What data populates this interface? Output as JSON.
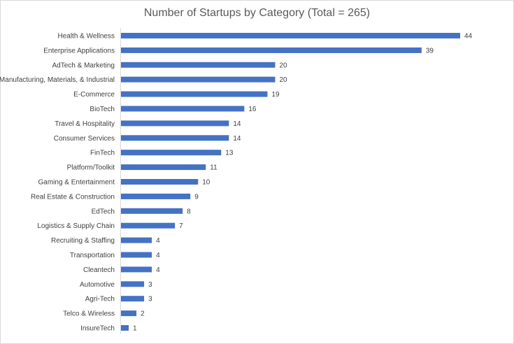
{
  "chart_data": {
    "type": "bar",
    "orientation": "horizontal",
    "title": "Number of Startups by Category (Total = 265)",
    "xlabel": "",
    "ylabel": "",
    "categories": [
      "Health & Wellness",
      "Enterprise Applications",
      "AdTech & Marketing",
      "Manufacturing, Materials, & Industrial",
      "E-Commerce",
      "BioTech",
      "Travel & Hospitality",
      "Consumer Services",
      "FinTech",
      "Platform/Toolkit",
      "Gaming & Entertainment",
      "Real Estate & Construction",
      "EdTech",
      "Logistics & Supply Chain",
      "Recruiting & Staffing",
      "Transportation",
      "Cleantech",
      "Automotive",
      "Agri-Tech",
      "Telco & Wireless",
      "InsureTech"
    ],
    "values": [
      44,
      39,
      20,
      20,
      19,
      16,
      14,
      14,
      13,
      11,
      10,
      9,
      8,
      7,
      4,
      4,
      4,
      3,
      3,
      2,
      1
    ],
    "xlim": [
      0,
      44
    ],
    "grid": false,
    "legend": "none",
    "data_labels": true,
    "bar_color": "#4472C4"
  }
}
